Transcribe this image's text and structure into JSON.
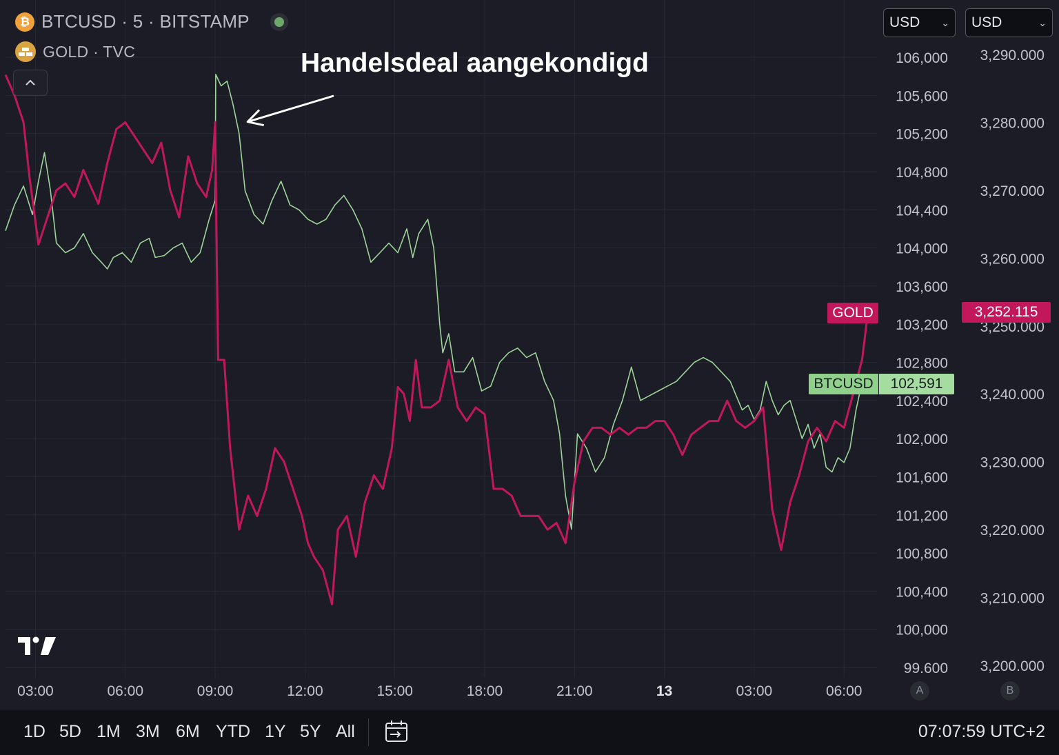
{
  "legend": {
    "btc_icon_glyph": "₿",
    "btc_label": "BTCUSD · 5 · BITSTAMP",
    "gold_label": "GOLD · TVC",
    "status": "live"
  },
  "annotation": {
    "text": "Handelsdeal aangekondigd"
  },
  "currency_selectors": [
    {
      "value": "USD"
    },
    {
      "value": "USD"
    }
  ],
  "price_tags": {
    "gold_name": "GOLD",
    "gold_price": "3,252.115",
    "btc_name": "BTCUSD",
    "btc_price": "102,591"
  },
  "scale_badges": [
    "A",
    "B"
  ],
  "bottom_bar": {
    "ranges": [
      "1D",
      "5D",
      "1M",
      "3M",
      "6M",
      "YTD",
      "1Y",
      "5Y",
      "All"
    ],
    "clock": "07:07:59 UTC+2"
  },
  "colors": {
    "gold_series": "#c2185b",
    "btc_series": "#9ed49a",
    "background": "#1b1c25",
    "grid": "#262833"
  },
  "chart_data": {
    "type": "line",
    "x_ticks": [
      "03:00",
      "06:00",
      "09:00",
      "12:00",
      "15:00",
      "18:00",
      "21:00",
      "13",
      "03:00",
      "06:00"
    ],
    "x_ticks_bold": [
      false,
      false,
      false,
      false,
      false,
      false,
      false,
      true,
      false,
      false
    ],
    "x_tick_hours": [
      3,
      6,
      9,
      12,
      15,
      18,
      21,
      24,
      27,
      30
    ],
    "xlim_hours": [
      2.0,
      31.1
    ],
    "axis_a": {
      "name": "BTCUSD",
      "unit": "USD",
      "ticks": [
        "106,000",
        "105,600",
        "105,200",
        "104,800",
        "104,400",
        "104,000",
        "103,600",
        "103,200",
        "102,800",
        "102,400",
        "102,000",
        "101,600",
        "101,200",
        "100,800",
        "100,400",
        "100,000",
        "99.600"
      ],
      "tick_values": [
        106000,
        105600,
        105200,
        104800,
        104400,
        104000,
        103600,
        103200,
        102800,
        102400,
        102000,
        101600,
        101200,
        100800,
        100400,
        100000,
        99600
      ],
      "ylim": [
        99600,
        106000
      ]
    },
    "axis_b": {
      "name": "GOLD",
      "unit": "USD",
      "ticks": [
        "3,290.000",
        "3,280.000",
        "3,270.000",
        "3,260.000",
        "3,250.000",
        "3,240.000",
        "3,230.000",
        "3,220.000",
        "3,210.000",
        "3,200.000"
      ],
      "tick_values": [
        3290,
        3280,
        3270,
        3260,
        3250,
        3240,
        3230,
        3220,
        3210,
        3200
      ],
      "ylim": [
        3200,
        3290
      ]
    },
    "series": [
      {
        "name": "BTCUSD",
        "axis": "a",
        "color": "#9ed49a",
        "points": [
          [
            2.0,
            104180
          ],
          [
            2.3,
            104450
          ],
          [
            2.6,
            104650
          ],
          [
            2.9,
            104350
          ],
          [
            3.1,
            104700
          ],
          [
            3.3,
            105000
          ],
          [
            3.5,
            104600
          ],
          [
            3.7,
            104050
          ],
          [
            4.0,
            103950
          ],
          [
            4.3,
            104000
          ],
          [
            4.6,
            104150
          ],
          [
            4.9,
            103950
          ],
          [
            5.2,
            103850
          ],
          [
            5.4,
            103780
          ],
          [
            5.6,
            103900
          ],
          [
            5.9,
            103950
          ],
          [
            6.2,
            103850
          ],
          [
            6.5,
            104050
          ],
          [
            6.8,
            104100
          ],
          [
            7.0,
            103900
          ],
          [
            7.3,
            103920
          ],
          [
            7.6,
            104000
          ],
          [
            7.9,
            104050
          ],
          [
            8.2,
            103850
          ],
          [
            8.5,
            103950
          ],
          [
            8.8,
            104300
          ],
          [
            9.0,
            104500
          ],
          [
            9.02,
            105820
          ],
          [
            9.2,
            105700
          ],
          [
            9.4,
            105750
          ],
          [
            9.6,
            105500
          ],
          [
            9.8,
            105200
          ],
          [
            10.0,
            104600
          ],
          [
            10.3,
            104350
          ],
          [
            10.6,
            104250
          ],
          [
            10.9,
            104500
          ],
          [
            11.2,
            104700
          ],
          [
            11.5,
            104450
          ],
          [
            11.8,
            104400
          ],
          [
            12.1,
            104300
          ],
          [
            12.4,
            104250
          ],
          [
            12.7,
            104300
          ],
          [
            13.0,
            104450
          ],
          [
            13.3,
            104550
          ],
          [
            13.6,
            104400
          ],
          [
            13.9,
            104200
          ],
          [
            14.2,
            103850
          ],
          [
            14.5,
            103950
          ],
          [
            14.8,
            104050
          ],
          [
            15.1,
            103950
          ],
          [
            15.4,
            104200
          ],
          [
            15.6,
            103900
          ],
          [
            15.8,
            104150
          ],
          [
            16.1,
            104300
          ],
          [
            16.3,
            104000
          ],
          [
            16.5,
            103200
          ],
          [
            16.6,
            102900
          ],
          [
            16.8,
            103100
          ],
          [
            17.0,
            102700
          ],
          [
            17.3,
            102700
          ],
          [
            17.6,
            102850
          ],
          [
            17.9,
            102500
          ],
          [
            18.2,
            102550
          ],
          [
            18.5,
            102800
          ],
          [
            18.8,
            102900
          ],
          [
            19.1,
            102950
          ],
          [
            19.4,
            102850
          ],
          [
            19.7,
            102900
          ],
          [
            20.0,
            102600
          ],
          [
            20.3,
            102400
          ],
          [
            20.5,
            102050
          ],
          [
            20.7,
            101400
          ],
          [
            20.9,
            101050
          ],
          [
            21.1,
            102050
          ],
          [
            21.4,
            101900
          ],
          [
            21.7,
            101650
          ],
          [
            22.0,
            101800
          ],
          [
            22.3,
            102150
          ],
          [
            22.6,
            102400
          ],
          [
            22.9,
            102750
          ],
          [
            23.2,
            102400
          ],
          [
            23.5,
            102450
          ],
          [
            23.8,
            102500
          ],
          [
            24.1,
            102550
          ],
          [
            24.4,
            102600
          ],
          [
            24.7,
            102700
          ],
          [
            25.0,
            102800
          ],
          [
            25.3,
            102850
          ],
          [
            25.6,
            102800
          ],
          [
            25.9,
            102700
          ],
          [
            26.2,
            102600
          ],
          [
            26.4,
            102450
          ],
          [
            26.6,
            102300
          ],
          [
            26.8,
            102350
          ],
          [
            27.0,
            102200
          ],
          [
            27.2,
            102300
          ],
          [
            27.4,
            102600
          ],
          [
            27.6,
            102400
          ],
          [
            27.8,
            102250
          ],
          [
            28.0,
            102350
          ],
          [
            28.2,
            102400
          ],
          [
            28.4,
            102200
          ],
          [
            28.6,
            102000
          ],
          [
            28.8,
            102150
          ],
          [
            29.0,
            101900
          ],
          [
            29.2,
            102050
          ],
          [
            29.4,
            101700
          ],
          [
            29.6,
            101650
          ],
          [
            29.8,
            101800
          ],
          [
            30.0,
            101750
          ],
          [
            30.2,
            101900
          ],
          [
            30.4,
            102300
          ],
          [
            30.6,
            102591
          ]
        ]
      },
      {
        "name": "GOLD",
        "axis": "b",
        "color": "#c2185b",
        "points": [
          [
            2.0,
            3287
          ],
          [
            2.3,
            3284
          ],
          [
            2.6,
            3280
          ],
          [
            2.8,
            3272
          ],
          [
            3.1,
            3262
          ],
          [
            3.4,
            3266
          ],
          [
            3.7,
            3270
          ],
          [
            4.0,
            3271
          ],
          [
            4.3,
            3269
          ],
          [
            4.6,
            3273
          ],
          [
            4.9,
            3270
          ],
          [
            5.1,
            3268
          ],
          [
            5.4,
            3274
          ],
          [
            5.7,
            3279
          ],
          [
            6.0,
            3280
          ],
          [
            6.3,
            3278
          ],
          [
            6.6,
            3276
          ],
          [
            6.9,
            3274
          ],
          [
            7.2,
            3277
          ],
          [
            7.5,
            3270
          ],
          [
            7.8,
            3266
          ],
          [
            8.1,
            3275
          ],
          [
            8.4,
            3271
          ],
          [
            8.7,
            3269
          ],
          [
            8.9,
            3273
          ],
          [
            9.0,
            3280
          ],
          [
            9.05,
            3262
          ],
          [
            9.1,
            3245
          ],
          [
            9.3,
            3245
          ],
          [
            9.5,
            3232
          ],
          [
            9.8,
            3220
          ],
          [
            10.1,
            3225
          ],
          [
            10.4,
            3222
          ],
          [
            10.7,
            3226
          ],
          [
            11.0,
            3232
          ],
          [
            11.3,
            3230
          ],
          [
            11.6,
            3226
          ],
          [
            11.9,
            3222
          ],
          [
            12.1,
            3218
          ],
          [
            12.3,
            3216
          ],
          [
            12.6,
            3214
          ],
          [
            12.9,
            3209
          ],
          [
            13.1,
            3220
          ],
          [
            13.4,
            3222
          ],
          [
            13.7,
            3216
          ],
          [
            14.0,
            3224
          ],
          [
            14.3,
            3228
          ],
          [
            14.6,
            3226
          ],
          [
            14.9,
            3232
          ],
          [
            15.1,
            3241
          ],
          [
            15.3,
            3240
          ],
          [
            15.5,
            3236
          ],
          [
            15.7,
            3245
          ],
          [
            15.9,
            3238
          ],
          [
            16.2,
            3238
          ],
          [
            16.5,
            3239
          ],
          [
            16.8,
            3245
          ],
          [
            17.1,
            3238
          ],
          [
            17.4,
            3236
          ],
          [
            17.7,
            3238
          ],
          [
            18.0,
            3237
          ],
          [
            18.3,
            3226
          ],
          [
            18.6,
            3226
          ],
          [
            18.9,
            3225
          ],
          [
            19.2,
            3222
          ],
          [
            19.5,
            3222
          ],
          [
            19.8,
            3222
          ],
          [
            20.1,
            3220
          ],
          [
            20.4,
            3221
          ],
          [
            20.7,
            3218
          ],
          [
            21.0,
            3227
          ],
          [
            21.3,
            3233
          ],
          [
            21.6,
            3235
          ],
          [
            21.9,
            3235
          ],
          [
            22.2,
            3234
          ],
          [
            22.5,
            3235
          ],
          [
            22.8,
            3234
          ],
          [
            23.1,
            3235
          ],
          [
            23.4,
            3235
          ],
          [
            23.7,
            3236
          ],
          [
            24.0,
            3236
          ],
          [
            24.3,
            3234
          ],
          [
            24.6,
            3231
          ],
          [
            24.9,
            3234
          ],
          [
            25.2,
            3235
          ],
          [
            25.5,
            3236
          ],
          [
            25.8,
            3236
          ],
          [
            26.1,
            3239
          ],
          [
            26.4,
            3236
          ],
          [
            26.7,
            3235
          ],
          [
            27.0,
            3236
          ],
          [
            27.3,
            3238
          ],
          [
            27.6,
            3223
          ],
          [
            27.9,
            3217
          ],
          [
            28.2,
            3224
          ],
          [
            28.5,
            3228
          ],
          [
            28.8,
            3233
          ],
          [
            29.1,
            3235
          ],
          [
            29.4,
            3233
          ],
          [
            29.7,
            3236
          ],
          [
            30.0,
            3235
          ],
          [
            30.3,
            3240
          ],
          [
            30.6,
            3245
          ],
          [
            30.8,
            3252.115
          ]
        ]
      }
    ],
    "annotation_arrow_target": [
      9.9,
      105250
    ]
  }
}
